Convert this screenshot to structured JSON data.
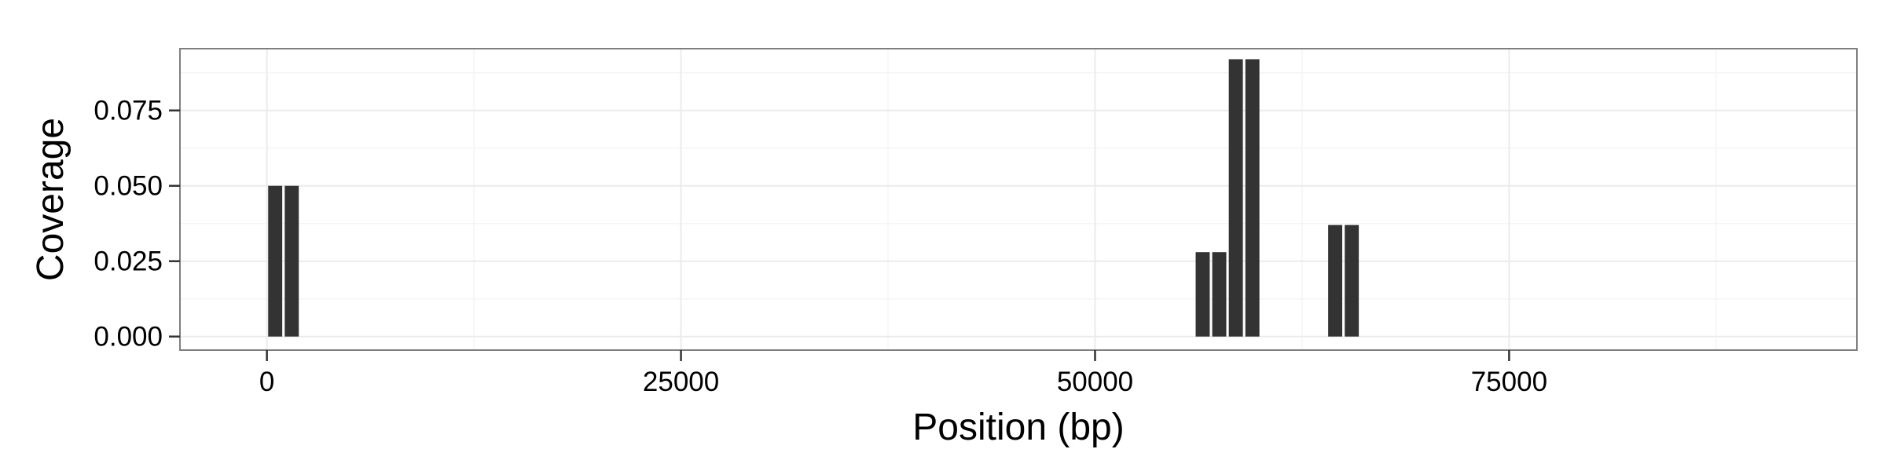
{
  "chart_data": {
    "type": "bar",
    "title": "",
    "xlabel": "Position (bp)",
    "ylabel": "Coverage",
    "xlim": [
      -5250,
      96000
    ],
    "ylim": [
      -0.0045,
      0.0955
    ],
    "x_ticks": [
      0,
      25000,
      50000,
      75000
    ],
    "x_tick_labels": [
      "0",
      "25000",
      "50000",
      "75000"
    ],
    "y_ticks": [
      0.0,
      0.025,
      0.05,
      0.075
    ],
    "y_tick_labels": [
      "0.000",
      "0.025",
      "0.050",
      "0.075"
    ],
    "bar_width": 850,
    "x": [
      500,
      1500,
      56500,
      57500,
      58500,
      59500,
      64500,
      65500
    ],
    "values": [
      0.05,
      0.05,
      0.028,
      0.028,
      0.092,
      0.092,
      0.037,
      0.037
    ],
    "grid": true,
    "legend": "none",
    "colors": {
      "bar": "#333333",
      "panel_border": "#7f7f7f",
      "grid_major": "#ebebeb",
      "grid_minor": "#f5f5f5",
      "tick": "#333333"
    }
  }
}
